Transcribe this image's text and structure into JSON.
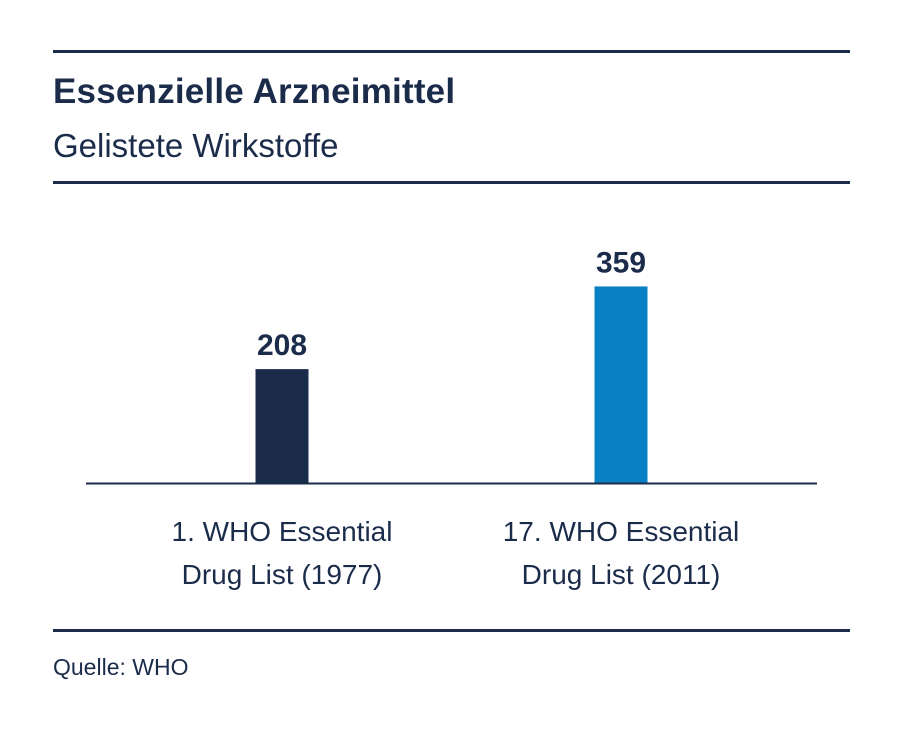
{
  "header": {
    "title": "Essenzielle Arzneimittel",
    "subtitle": "Gelistete Wirkstoffe"
  },
  "chart_data": {
    "type": "bar",
    "categories": [
      [
        "1. WHO Essential",
        "Drug List (1977)"
      ],
      [
        "17. WHO Essential",
        "Drug List (2011)"
      ]
    ],
    "values": [
      208,
      359
    ],
    "colors": [
      "#1b2c4b",
      "#0a80c4"
    ],
    "title": "Essenzielle Arzneimittel",
    "subtitle": "Gelistete Wirkstoffe",
    "xlabel": "",
    "ylabel": "",
    "grid": false,
    "legend": "none"
  },
  "footer": {
    "source": "Quelle: WHO"
  }
}
